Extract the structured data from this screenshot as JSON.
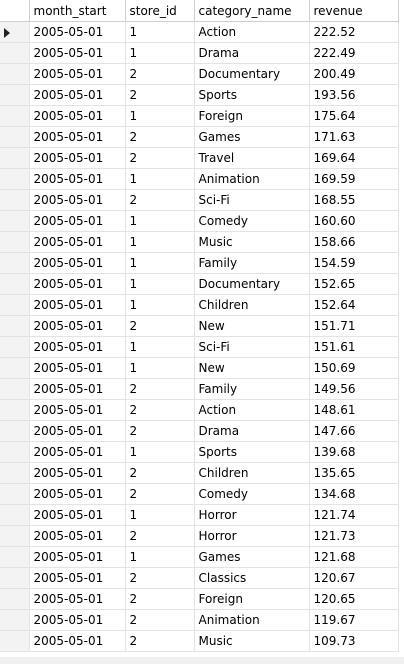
{
  "columns": [
    "month_start",
    "store_id",
    "category_name",
    "revenue"
  ],
  "rows": [
    [
      "2005-05-01",
      "1",
      "Action",
      "222.52"
    ],
    [
      "2005-05-01",
      "1",
      "Drama",
      "222.49"
    ],
    [
      "2005-05-01",
      "2",
      "Documentary",
      "200.49"
    ],
    [
      "2005-05-01",
      "2",
      "Sports",
      "193.56"
    ],
    [
      "2005-05-01",
      "1",
      "Foreign",
      "175.64"
    ],
    [
      "2005-05-01",
      "2",
      "Games",
      "171.63"
    ],
    [
      "2005-05-01",
      "2",
      "Travel",
      "169.64"
    ],
    [
      "2005-05-01",
      "1",
      "Animation",
      "169.59"
    ],
    [
      "2005-05-01",
      "2",
      "Sci-Fi",
      "168.55"
    ],
    [
      "2005-05-01",
      "1",
      "Comedy",
      "160.60"
    ],
    [
      "2005-05-01",
      "1",
      "Music",
      "158.66"
    ],
    [
      "2005-05-01",
      "1",
      "Family",
      "154.59"
    ],
    [
      "2005-05-01",
      "1",
      "Documentary",
      "152.65"
    ],
    [
      "2005-05-01",
      "1",
      "Children",
      "152.64"
    ],
    [
      "2005-05-01",
      "2",
      "New",
      "151.71"
    ],
    [
      "2005-05-01",
      "1",
      "Sci-Fi",
      "151.61"
    ],
    [
      "2005-05-01",
      "1",
      "New",
      "150.69"
    ],
    [
      "2005-05-01",
      "2",
      "Family",
      "149.56"
    ],
    [
      "2005-05-01",
      "2",
      "Action",
      "148.61"
    ],
    [
      "2005-05-01",
      "2",
      "Drama",
      "147.66"
    ],
    [
      "2005-05-01",
      "1",
      "Sports",
      "139.68"
    ],
    [
      "2005-05-01",
      "2",
      "Children",
      "135.65"
    ],
    [
      "2005-05-01",
      "2",
      "Comedy",
      "134.68"
    ],
    [
      "2005-05-01",
      "1",
      "Horror",
      "121.74"
    ],
    [
      "2005-05-01",
      "2",
      "Horror",
      "121.73"
    ],
    [
      "2005-05-01",
      "1",
      "Games",
      "121.68"
    ],
    [
      "2005-05-01",
      "2",
      "Classics",
      "120.67"
    ],
    [
      "2005-05-01",
      "2",
      "Foreign",
      "120.65"
    ],
    [
      "2005-05-01",
      "2",
      "Animation",
      "119.67"
    ],
    [
      "2005-05-01",
      "2",
      "Music",
      "109.73"
    ]
  ],
  "current_row_index": 0,
  "row_indicator_icon": "current-row-arrow-icon"
}
